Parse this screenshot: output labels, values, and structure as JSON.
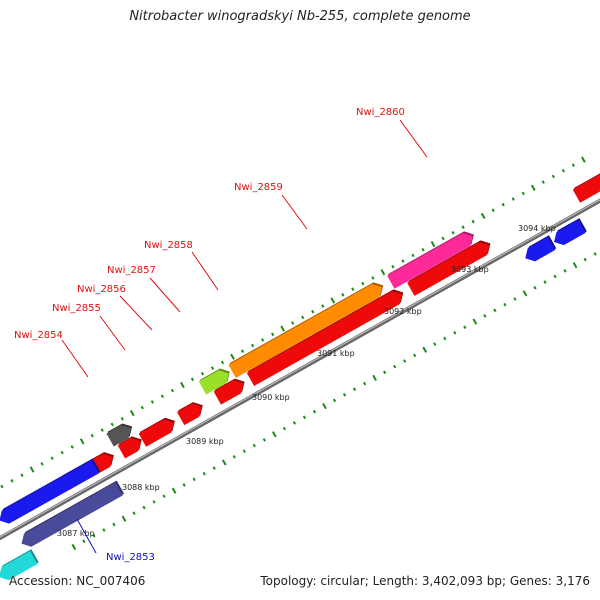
{
  "title": "Nitrobacter winogradskyi Nb-255, complete genome",
  "footer": {
    "accession": "Accession: NC_007406",
    "topology": "Topology: circular; Length: 3,402,093 bp; Genes: 3,176"
  },
  "colors": {
    "backbone": "#8a8a8a",
    "tick": "#1a8a1a",
    "label_red": "#e01010",
    "label_blue": "#1010c0"
  },
  "map": {
    "kbp_labels": [
      "3087 kbp",
      "3088 kbp",
      "3089 kbp",
      "3090 kbp",
      "3091 kbp",
      "3092 kbp",
      "3093 kbp",
      "3094 kbp"
    ],
    "gene_labels": [
      "Nwi_2853",
      "Nwi_2854",
      "Nwi_2855",
      "Nwi_2856",
      "Nwi_2857",
      "Nwi_2858",
      "Nwi_2859",
      "Nwi_2860"
    ]
  }
}
